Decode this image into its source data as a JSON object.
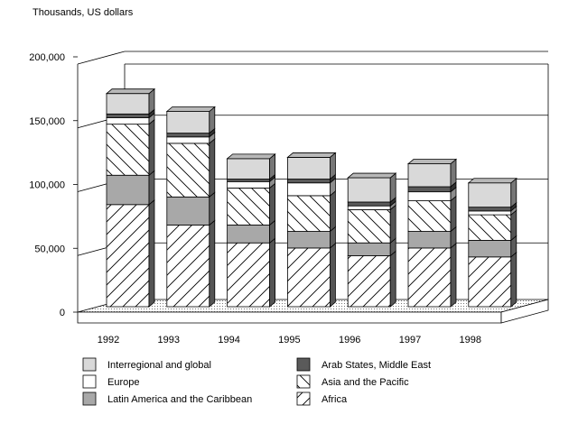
{
  "chart_data": {
    "type": "bar",
    "stacked": true,
    "three_d": true,
    "ylabel": "Thousands, US dollars",
    "ylim": [
      0,
      200000
    ],
    "yticks": [
      "0",
      "50,000",
      "100,000",
      "150,000",
      "200,000"
    ],
    "ytick_values": [
      0,
      50000,
      100000,
      150000,
      200000
    ],
    "grid": true,
    "legend_position": "bottom",
    "categories": [
      "1992",
      "1993",
      "1994",
      "1995",
      "1996",
      "1997",
      "1998"
    ],
    "series": [
      {
        "name": "Africa",
        "values": [
          80000,
          64000,
          50000,
          46000,
          40000,
          46000,
          39000
        ],
        "fill": "diag-fwd",
        "color": "#ffffff"
      },
      {
        "name": "Latin America and the Caribbean",
        "values": [
          23000,
          22000,
          14000,
          13000,
          10000,
          13000,
          13000
        ],
        "fill": "solid",
        "color": "#a8a8a8"
      },
      {
        "name": "Asia and the Pacific",
        "values": [
          40000,
          42000,
          29000,
          28000,
          26000,
          24000,
          20000
        ],
        "fill": "diag-back",
        "color": "#ffffff"
      },
      {
        "name": "Europe",
        "values": [
          5000,
          5000,
          5000,
          10000,
          3000,
          7000,
          3000
        ],
        "fill": "solid",
        "color": "#ffffff"
      },
      {
        "name": "Arab States, Middle East",
        "values": [
          3000,
          3000,
          2000,
          3000,
          3000,
          4000,
          3000
        ],
        "fill": "solid",
        "color": "#5a5a5a"
      },
      {
        "name": "Interregional and global",
        "values": [
          16000,
          17000,
          16000,
          17000,
          19000,
          18000,
          19000
        ],
        "fill": "solid",
        "color": "#d9d9d9"
      }
    ],
    "legend": [
      {
        "label": "Interregional and global",
        "fill": "solid",
        "color": "#d9d9d9"
      },
      {
        "label": "Arab States, Middle East",
        "fill": "solid",
        "color": "#5a5a5a"
      },
      {
        "label": "Europe",
        "fill": "solid",
        "color": "#ffffff"
      },
      {
        "label": "Asia and the Pacific",
        "fill": "diag-back",
        "color": "#ffffff"
      },
      {
        "label": "Latin America and the Caribbean",
        "fill": "solid",
        "color": "#a8a8a8"
      },
      {
        "label": "Africa",
        "fill": "diag-fwd",
        "color": "#ffffff"
      }
    ]
  }
}
